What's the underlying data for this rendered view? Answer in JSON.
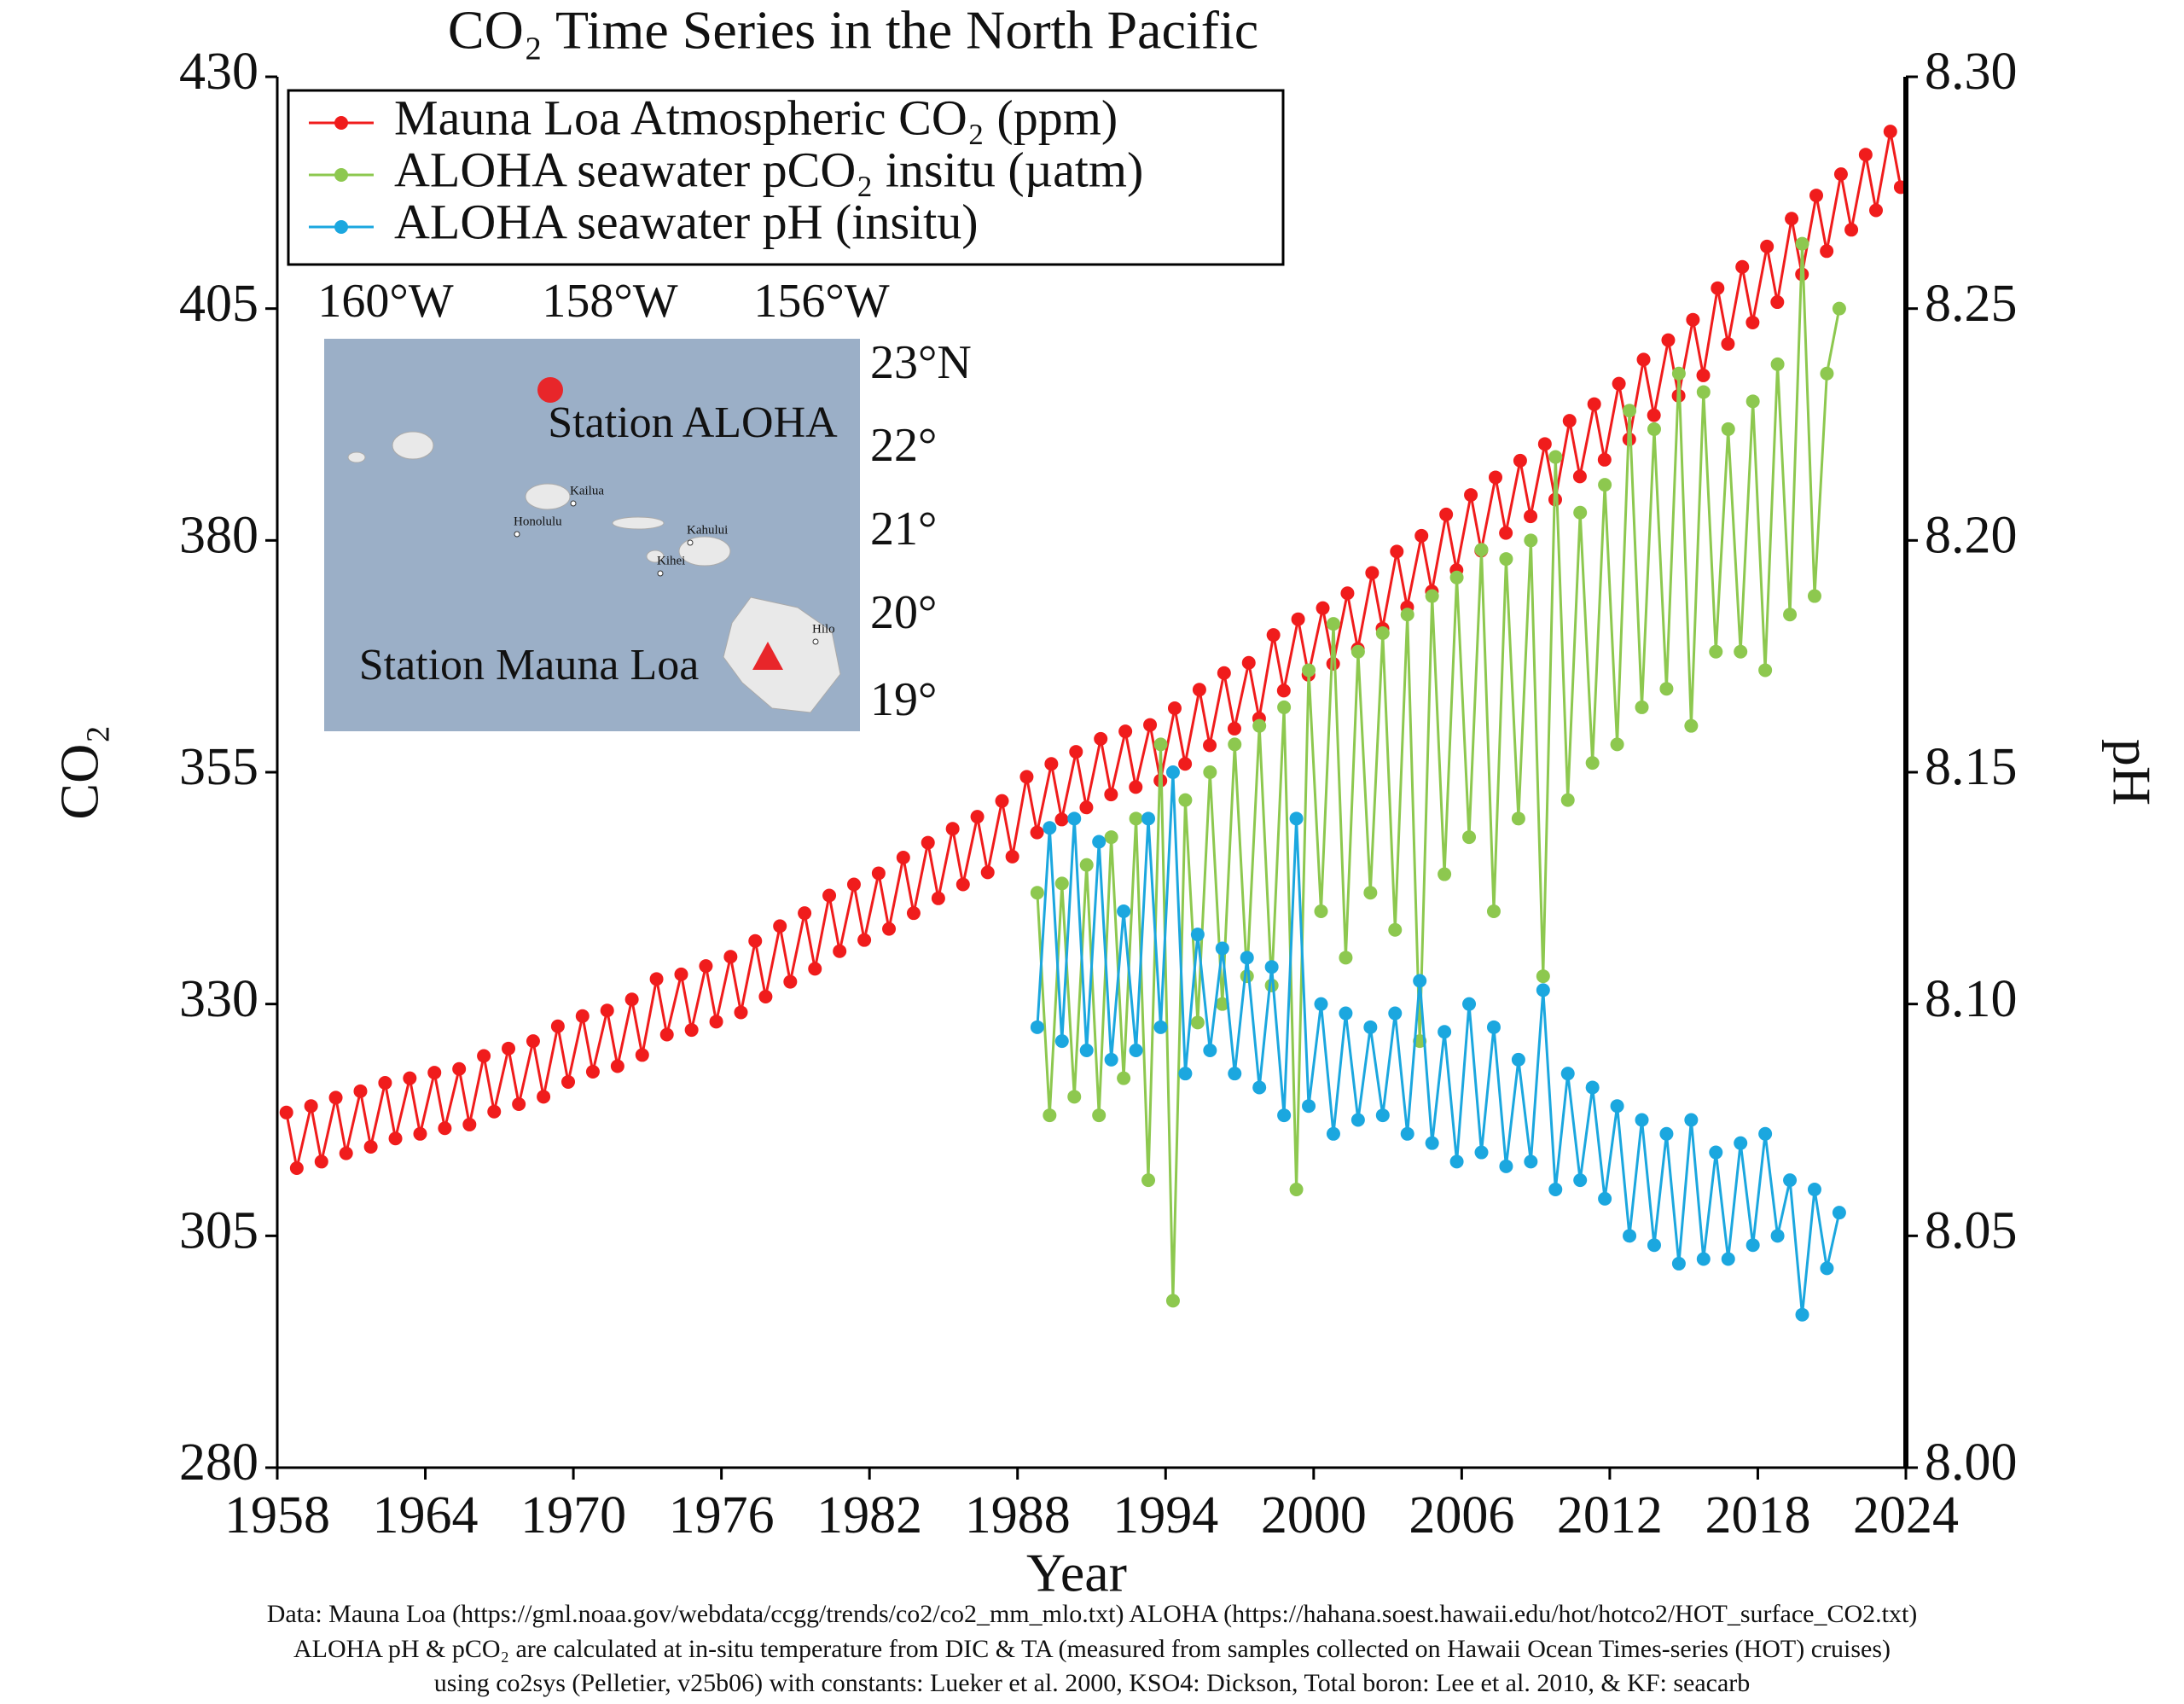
{
  "chart_data": {
    "type": "line",
    "title": "CO₂ Time Series in the North Pacific",
    "x_label": "Year",
    "y_label": "CO₂",
    "y2_label": "pH",
    "xlim": [
      1958,
      2024
    ],
    "xticks": [
      1958,
      1964,
      1970,
      1976,
      1982,
      1988,
      1994,
      2000,
      2006,
      2012,
      2018,
      2024
    ],
    "ylim": [
      280,
      430
    ],
    "yticks": [
      280,
      305,
      330,
      355,
      380,
      405,
      430
    ],
    "y2lim": [
      8.0,
      8.3
    ],
    "y2ticks": [
      {
        "value": 8.0,
        "label": "8.00"
      },
      8.05,
      {
        "value": 8.1,
        "label": "8.10"
      },
      8.15,
      {
        "value": 8.2,
        "label": "8.20"
      },
      8.25,
      {
        "value": 8.3,
        "label": "8.30"
      }
    ],
    "legend": "upper left",
    "series": [
      {
        "name": "Mauna Loa Atmospheric CO₂ (ppm)",
        "color": "#f01c1c",
        "x": [
          1958.37,
          1958.79,
          1959.37,
          1959.79,
          1960.37,
          1960.79,
          1961.37,
          1961.79,
          1962.37,
          1962.79,
          1963.37,
          1963.79,
          1964.37,
          1964.79,
          1965.37,
          1965.79,
          1966.37,
          1966.79,
          1967.37,
          1967.79,
          1968.37,
          1968.79,
          1969.37,
          1969.79,
          1970.37,
          1970.79,
          1971.37,
          1971.79,
          1972.37,
          1972.79,
          1973.37,
          1973.79,
          1974.37,
          1974.79,
          1975.37,
          1975.79,
          1976.37,
          1976.79,
          1977.37,
          1977.79,
          1978.37,
          1978.79,
          1979.37,
          1979.79,
          1980.37,
          1980.79,
          1981.37,
          1981.79,
          1982.37,
          1982.79,
          1983.37,
          1983.79,
          1984.37,
          1984.79,
          1985.37,
          1985.79,
          1986.37,
          1986.79,
          1987.37,
          1987.79,
          1988.37,
          1988.79,
          1989.37,
          1989.79,
          1990.37,
          1990.79,
          1991.37,
          1991.79,
          1992.37,
          1992.79,
          1993.37,
          1993.79,
          1994.37,
          1994.79,
          1995.37,
          1995.79,
          1996.37,
          1996.79,
          1997.37,
          1997.79,
          1998.37,
          1998.79,
          1999.37,
          1999.79,
          2000.37,
          2000.79,
          2001.37,
          2001.79,
          2002.37,
          2002.79,
          2003.37,
          2003.79,
          2004.37,
          2004.79,
          2005.37,
          2005.79,
          2006.37,
          2006.79,
          2007.37,
          2007.79,
          2008.37,
          2008.79,
          2009.37,
          2009.79,
          2010.37,
          2010.79,
          2011.37,
          2011.79,
          2012.37,
          2012.79,
          2013.37,
          2013.79,
          2014.37,
          2014.79,
          2015.37,
          2015.79,
          2016.37,
          2016.79,
          2017.37,
          2017.79,
          2018.37,
          2018.79,
          2019.37,
          2019.79,
          2020.37,
          2020.79,
          2021.37,
          2021.79,
          2022.37,
          2022.79,
          2023.37,
          2023.79
        ],
        "values": [
          318.3,
          312.3,
          319.0,
          313.0,
          319.9,
          313.9,
          320.6,
          314.6,
          321.5,
          315.5,
          322.0,
          316.0,
          322.6,
          316.6,
          323.0,
          317.0,
          324.4,
          318.4,
          325.2,
          319.2,
          326.0,
          320.0,
          327.6,
          321.6,
          328.7,
          322.7,
          329.3,
          323.3,
          330.5,
          324.5,
          332.7,
          326.7,
          333.2,
          327.2,
          334.1,
          328.1,
          335.1,
          329.1,
          336.8,
          330.8,
          338.4,
          332.4,
          339.8,
          333.8,
          341.7,
          335.7,
          342.9,
          336.9,
          344.1,
          338.1,
          345.8,
          339.8,
          347.4,
          341.4,
          348.9,
          342.9,
          350.2,
          344.2,
          351.9,
          345.9,
          354.5,
          348.5,
          355.9,
          349.9,
          357.2,
          351.2,
          358.6,
          352.6,
          359.4,
          353.4,
          360.1,
          354.1,
          361.9,
          355.9,
          363.9,
          357.9,
          365.7,
          359.7,
          366.8,
          360.8,
          369.8,
          363.8,
          371.5,
          365.5,
          372.7,
          366.7,
          374.3,
          368.3,
          376.5,
          370.5,
          378.8,
          372.8,
          380.5,
          374.5,
          382.8,
          376.8,
          384.9,
          378.9,
          386.8,
          380.8,
          388.6,
          382.6,
          390.4,
          384.4,
          392.9,
          386.9,
          394.7,
          388.7,
          396.9,
          390.9,
          399.5,
          393.5,
          401.6,
          395.6,
          403.8,
          397.8,
          407.2,
          401.2,
          409.5,
          403.5,
          411.7,
          405.7,
          414.7,
          408.7,
          417.2,
          411.2,
          419.5,
          413.5,
          421.6,
          415.6,
          424.1,
          418.1
        ]
      },
      {
        "name": "ALOHA seawater pCO₂ insitu (µatm)",
        "color": "#8dc84f",
        "x": [
          1988.8,
          1989.3,
          1989.8,
          1990.3,
          1990.8,
          1991.3,
          1991.8,
          1992.3,
          1992.8,
          1993.3,
          1993.8,
          1994.3,
          1994.8,
          1995.3,
          1995.8,
          1996.3,
          1996.8,
          1997.3,
          1997.8,
          1998.3,
          1998.8,
          1999.3,
          1999.8,
          2000.3,
          2000.8,
          2001.3,
          2001.8,
          2002.3,
          2002.8,
          2003.3,
          2003.8,
          2004.3,
          2004.8,
          2005.3,
          2005.8,
          2006.3,
          2006.8,
          2007.3,
          2007.8,
          2008.3,
          2008.8,
          2009.3,
          2009.8,
          2010.3,
          2010.8,
          2011.3,
          2011.8,
          2012.3,
          2012.8,
          2013.3,
          2013.8,
          2014.3,
          2014.8,
          2015.3,
          2015.8,
          2016.3,
          2016.8,
          2017.3,
          2017.8,
          2018.3,
          2018.8,
          2019.3,
          2019.8,
          2020.3,
          2020.8,
          2021.3
        ],
        "values": [
          342,
          318,
          343,
          320,
          345,
          318,
          348,
          322,
          350,
          311,
          358,
          298,
          352,
          328,
          355,
          330,
          358,
          333,
          360,
          332,
          362,
          310,
          366,
          340,
          371,
          335,
          368,
          342,
          370,
          338,
          372,
          326,
          374,
          344,
          376,
          348,
          379,
          340,
          378,
          350,
          380,
          333,
          389,
          352,
          383,
          356,
          386,
          358,
          394,
          362,
          392,
          364,
          398,
          360,
          396,
          368,
          392,
          368,
          395,
          366,
          399,
          372,
          412,
          374,
          398,
          405
        ]
      },
      {
        "name": "ALOHA seawater pH (insitu)",
        "color": "#1ba7df",
        "axis": "y2",
        "x": [
          1988.8,
          1989.3,
          1989.8,
          1990.3,
          1990.8,
          1991.3,
          1991.8,
          1992.3,
          1992.8,
          1993.3,
          1993.8,
          1994.3,
          1994.8,
          1995.3,
          1995.8,
          1996.3,
          1996.8,
          1997.3,
          1997.8,
          1998.3,
          1998.8,
          1999.3,
          1999.8,
          2000.3,
          2000.8,
          2001.3,
          2001.8,
          2002.3,
          2002.8,
          2003.3,
          2003.8,
          2004.3,
          2004.8,
          2005.3,
          2005.8,
          2006.3,
          2006.8,
          2007.3,
          2007.8,
          2008.3,
          2008.8,
          2009.3,
          2009.8,
          2010.3,
          2010.8,
          2011.3,
          2011.8,
          2012.3,
          2012.8,
          2013.3,
          2013.8,
          2014.3,
          2014.8,
          2015.3,
          2015.8,
          2016.3,
          2016.8,
          2017.3,
          2017.8,
          2018.3,
          2018.8,
          2019.3,
          2019.8,
          2020.3,
          2020.8,
          2021.3
        ],
        "values": [
          8.095,
          8.138,
          8.092,
          8.14,
          8.09,
          8.135,
          8.088,
          8.12,
          8.09,
          8.14,
          8.095,
          8.15,
          8.085,
          8.115,
          8.09,
          8.112,
          8.085,
          8.11,
          8.082,
          8.108,
          8.076,
          8.14,
          8.078,
          8.1,
          8.072,
          8.098,
          8.075,
          8.095,
          8.076,
          8.098,
          8.072,
          8.105,
          8.07,
          8.094,
          8.066,
          8.1,
          8.068,
          8.095,
          8.065,
          8.088,
          8.066,
          8.103,
          8.06,
          8.085,
          8.062,
          8.082,
          8.058,
          8.078,
          8.05,
          8.075,
          8.048,
          8.072,
          8.044,
          8.075,
          8.045,
          8.068,
          8.045,
          8.07,
          8.048,
          8.072,
          8.05,
          8.062,
          8.033,
          8.06,
          8.043,
          8.055
        ]
      }
    ],
    "inset_map": {
      "lon_labels": [
        "160°W",
        "158°W",
        "156°W"
      ],
      "lat_labels": [
        "23°N",
        "22°",
        "21°",
        "20°",
        "19°"
      ],
      "stations": [
        "Station ALOHA",
        "Station Mauna Loa"
      ],
      "places": [
        "Kailua",
        "Honolulu",
        "Kahului",
        "Kihei",
        "Hilo"
      ]
    },
    "notes": [
      "Data: Mauna Loa (https://gml.noaa.gov/webdata/ccgg/trends/co2/co2_mm_mlo.txt)  ALOHA (https://hahana.soest.hawaii.edu/hot/hotco2/HOT_surface_CO2.txt)",
      "ALOHA pH & pCO₂ are calculated at in-situ temperature from DIC & TA (measured from samples collected on Hawaii Ocean Times-series (HOT) cruises)",
      "using co2sys (Pelletier, v25b06) with constants: Lueker et al. 2000, KSO4: Dickson, Total boron: Lee et al. 2010, & KF: seacarb"
    ]
  }
}
